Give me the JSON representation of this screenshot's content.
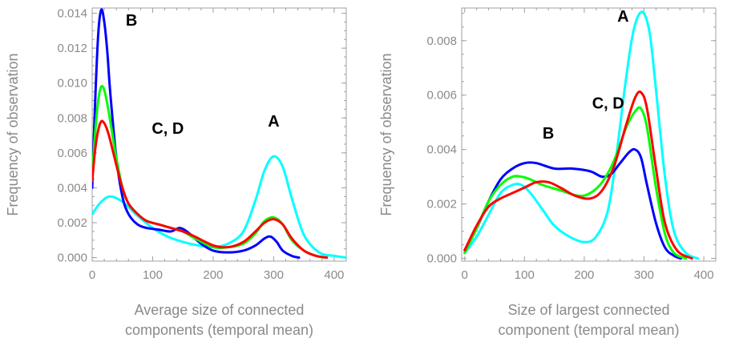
{
  "chart_data": [
    {
      "type": "line",
      "xlabel": [
        "Average size of connected",
        "components (temporal mean)"
      ],
      "ylabel": "Frequency of observation",
      "xlim": [
        0,
        420
      ],
      "ylim": [
        -0.0002,
        0.0143
      ],
      "xticks": [
        0,
        100,
        200,
        300,
        400
      ],
      "yticks": [
        0.0,
        0.002,
        0.004,
        0.006,
        0.008,
        0.01,
        0.012,
        0.014
      ],
      "ytick_labels": [
        "0.000",
        "0.002",
        "0.004",
        "0.006",
        "0.008",
        "0.010",
        "0.012",
        "0.014"
      ],
      "annotations": [
        {
          "text": "B",
          "x": 65,
          "y": 0.0133
        },
        {
          "text": "C, D",
          "x": 125,
          "y": 0.0071
        },
        {
          "text": "A",
          "x": 300,
          "y": 0.0075
        }
      ],
      "series": [
        {
          "color": "#00ffff",
          "x": [
            0,
            15,
            30,
            50,
            75,
            100,
            125,
            150,
            175,
            200,
            225,
            250,
            270,
            285,
            300,
            315,
            330,
            350,
            375,
            400,
            420
          ],
          "y": [
            0.0025,
            0.0032,
            0.0035,
            0.0032,
            0.0024,
            0.0017,
            0.0012,
            0.0009,
            0.0007,
            0.0006,
            0.0008,
            0.0015,
            0.0033,
            0.005,
            0.0058,
            0.0052,
            0.0034,
            0.0013,
            0.0003,
            0.0001,
            0.0
          ]
        },
        {
          "color": "#0000ff",
          "x": [
            0,
            5,
            10,
            15,
            20,
            25,
            30,
            40,
            50,
            60,
            75,
            90,
            110,
            130,
            145,
            160,
            180,
            200,
            225,
            250,
            270,
            285,
            295,
            305,
            315,
            330,
            342
          ],
          "y": [
            0.004,
            0.009,
            0.0128,
            0.0142,
            0.0135,
            0.0118,
            0.0094,
            0.0057,
            0.0035,
            0.0025,
            0.0019,
            0.0017,
            0.0016,
            0.0015,
            0.0017,
            0.0014,
            0.0008,
            0.0004,
            0.0003,
            0.0004,
            0.0007,
            0.0011,
            0.0012,
            0.0009,
            0.0004,
            0.0001,
            0.0
          ]
        },
        {
          "color": "#00ff00",
          "x": [
            0,
            5,
            10,
            15,
            20,
            25,
            30,
            40,
            50,
            60,
            75,
            90,
            110,
            130,
            150,
            170,
            200,
            225,
            250,
            270,
            285,
            300,
            315,
            330,
            350,
            370,
            385
          ],
          "y": [
            0.0048,
            0.0072,
            0.009,
            0.0098,
            0.0096,
            0.0088,
            0.0078,
            0.0057,
            0.004,
            0.0031,
            0.0025,
            0.0021,
            0.0019,
            0.0017,
            0.0015,
            0.0011,
            0.0006,
            0.0006,
            0.0008,
            0.0014,
            0.0021,
            0.0023,
            0.0019,
            0.001,
            0.0004,
            0.0001,
            0.0
          ]
        },
        {
          "color": "#ff0000",
          "x": [
            0,
            5,
            10,
            15,
            20,
            25,
            30,
            40,
            50,
            60,
            75,
            90,
            110,
            130,
            150,
            170,
            200,
            225,
            250,
            270,
            285,
            300,
            315,
            330,
            350,
            370,
            388
          ],
          "y": [
            0.0044,
            0.0062,
            0.0073,
            0.0078,
            0.0077,
            0.0073,
            0.0067,
            0.0053,
            0.004,
            0.0031,
            0.0025,
            0.0021,
            0.0019,
            0.0017,
            0.0015,
            0.0012,
            0.0007,
            0.0006,
            0.0009,
            0.0015,
            0.002,
            0.0022,
            0.0019,
            0.0011,
            0.0004,
            0.0001,
            0.0
          ]
        }
      ]
    },
    {
      "type": "line",
      "xlabel": [
        "Size of largest connected",
        "component (temporal mean)"
      ],
      "ylabel": "Frequency of observation",
      "xlim": [
        -5,
        420
      ],
      "ylim": [
        -0.0001,
        0.0092
      ],
      "xticks": [
        0,
        100,
        200,
        300,
        400
      ],
      "yticks": [
        0.0,
        0.002,
        0.004,
        0.006,
        0.008
      ],
      "ytick_labels": [
        "0.000",
        "0.002",
        "0.004",
        "0.006",
        "0.008"
      ],
      "annotations": [
        {
          "text": "A",
          "x": 265,
          "y": 0.0087
        },
        {
          "text": "C, D",
          "x": 240,
          "y": 0.0055
        },
        {
          "text": "B",
          "x": 140,
          "y": 0.0044
        }
      ],
      "series": [
        {
          "color": "#00ffff",
          "x": [
            0,
            20,
            40,
            60,
            80,
            95,
            110,
            130,
            150,
            175,
            200,
            220,
            240,
            255,
            268,
            280,
            290,
            300,
            310,
            320,
            335,
            350,
            370,
            390
          ],
          "y": [
            0.0002,
            0.0008,
            0.0016,
            0.0024,
            0.0027,
            0.0027,
            0.0024,
            0.0018,
            0.0012,
            0.0008,
            0.0006,
            0.0008,
            0.0018,
            0.004,
            0.0063,
            0.0081,
            0.0089,
            0.009,
            0.0082,
            0.0062,
            0.003,
            0.001,
            0.0002,
            0.0
          ]
        },
        {
          "color": "#0000ff",
          "x": [
            0,
            20,
            40,
            60,
            80,
            100,
            120,
            150,
            180,
            210,
            230,
            245,
            260,
            275,
            285,
            295,
            305,
            320,
            335,
            350,
            362
          ],
          "y": [
            0.0003,
            0.0011,
            0.0021,
            0.0029,
            0.0033,
            0.0035,
            0.0035,
            0.0033,
            0.0033,
            0.0032,
            0.003,
            0.0031,
            0.0035,
            0.0039,
            0.004,
            0.0037,
            0.0027,
            0.0013,
            0.0004,
            0.0001,
            0.0
          ]
        },
        {
          "color": "#00ff00",
          "x": [
            0,
            20,
            40,
            60,
            80,
            95,
            110,
            130,
            160,
            190,
            210,
            230,
            250,
            270,
            285,
            295,
            305,
            320,
            335,
            350,
            370
          ],
          "y": [
            0.0002,
            0.0011,
            0.0021,
            0.0027,
            0.003,
            0.003,
            0.0029,
            0.0027,
            0.0025,
            0.0023,
            0.0024,
            0.0028,
            0.0036,
            0.0048,
            0.0054,
            0.0055,
            0.0048,
            0.0026,
            0.0009,
            0.0002,
            0.0
          ]
        },
        {
          "color": "#ff0000",
          "x": [
            0,
            20,
            40,
            60,
            80,
            100,
            120,
            140,
            160,
            185,
            210,
            230,
            250,
            270,
            285,
            295,
            305,
            320,
            335,
            355,
            380
          ],
          "y": [
            0.0003,
            0.0012,
            0.0019,
            0.0022,
            0.0024,
            0.0026,
            0.0028,
            0.0028,
            0.0026,
            0.0023,
            0.0022,
            0.0025,
            0.0034,
            0.0049,
            0.0059,
            0.0061,
            0.0055,
            0.0033,
            0.0013,
            0.0003,
            0.0
          ]
        }
      ]
    }
  ]
}
